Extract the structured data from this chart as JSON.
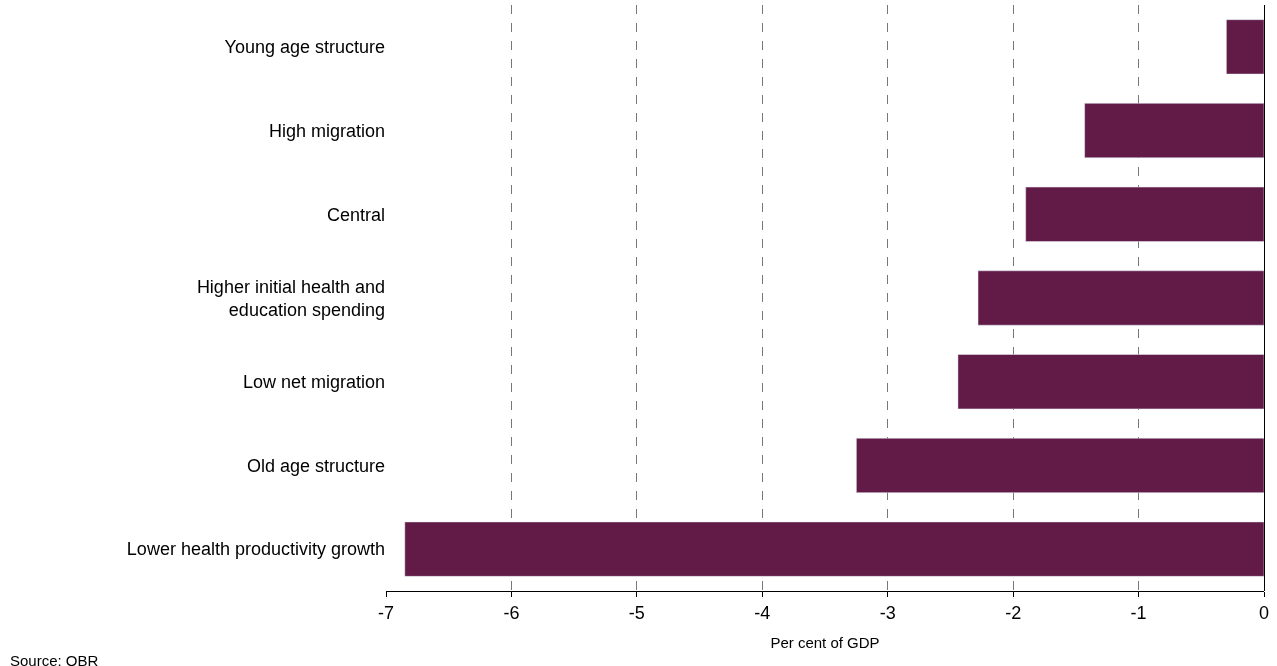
{
  "chart_data": {
    "type": "bar",
    "orientation": "horizontal",
    "xlabel": "Per cent of GDP",
    "categories": [
      "Young age structure",
      "High migration",
      "Central",
      "Higher initial health and\neducation spending",
      "Low net migration",
      "Old age structure",
      "Lower health productivity growth"
    ],
    "values": [
      -0.3,
      -1.43,
      -1.9,
      -2.28,
      -2.44,
      -3.25,
      -6.85
    ],
    "color": "#621a47",
    "xlim": [
      -7,
      0
    ],
    "xticks": [
      -7,
      -6,
      -5,
      -4,
      -3,
      -2,
      -1,
      0
    ],
    "grid": "x",
    "annotations": [
      "Source: OBR"
    ]
  }
}
